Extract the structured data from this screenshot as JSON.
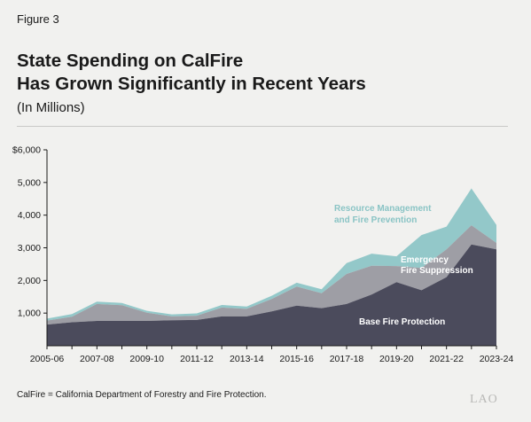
{
  "figure_label": "Figure 3",
  "title_line1": "State Spending on CalFire",
  "title_line2": "Has Grown Significantly in Recent Years",
  "subtitle": "(In Millions)",
  "footnote": "CalFire = California Department of Forestry and Fire Protection.",
  "logo_text": "LAO",
  "colors": {
    "base": "#4b4b5c",
    "emergency": "#9e9ea5",
    "resource": "#93c8c9",
    "resource_label": "#8ac4c5",
    "emergency_label": "#ffffff",
    "base_label": "#ffffff"
  },
  "chart_data": {
    "type": "area",
    "stacked": true,
    "x": [
      "2005-06",
      "2006-07",
      "2007-08",
      "2008-09",
      "2009-10",
      "2010-11",
      "2011-12",
      "2012-13",
      "2013-14",
      "2014-15",
      "2015-16",
      "2016-17",
      "2017-18",
      "2018-19",
      "2019-20",
      "2020-21",
      "2021-22",
      "2022-23",
      "2023-24"
    ],
    "tick_labels": [
      "2005-06",
      "2007-08",
      "2009-10",
      "2011-12",
      "2013-14",
      "2015-16",
      "2017-18",
      "2019-20",
      "2021-22",
      "2023-24"
    ],
    "y_ticks": [
      "$6,000",
      "5,000",
      "4,000",
      "3,000",
      "2,000",
      "1,000"
    ],
    "ylim": [
      0,
      6000
    ],
    "series": [
      {
        "name": "Base Fire Protection",
        "values": [
          650,
          720,
          760,
          760,
          760,
          780,
          790,
          900,
          900,
          1050,
          1230,
          1150,
          1280,
          1570,
          1950,
          1700,
          2100,
          3100,
          2950
        ]
      },
      {
        "name": "Emergency Fire Suppression",
        "values": [
          120,
          170,
          520,
          480,
          250,
          120,
          130,
          270,
          230,
          380,
          580,
          460,
          920,
          880,
          490,
          680,
          850,
          590,
          200
        ]
      },
      {
        "name": "Resource Management and Fire Prevention",
        "values": [
          60,
          80,
          70,
          70,
          60,
          60,
          70,
          80,
          70,
          100,
          120,
          120,
          330,
          370,
          300,
          1010,
          700,
          1130,
          550
        ]
      }
    ],
    "series_labels": {
      "resource_line1": "Resource Management",
      "resource_line2": "and Fire Prevention",
      "emergency_line1": "Emergency",
      "emergency_line2": "Fire Suppression",
      "base": "Base Fire Protection"
    }
  }
}
